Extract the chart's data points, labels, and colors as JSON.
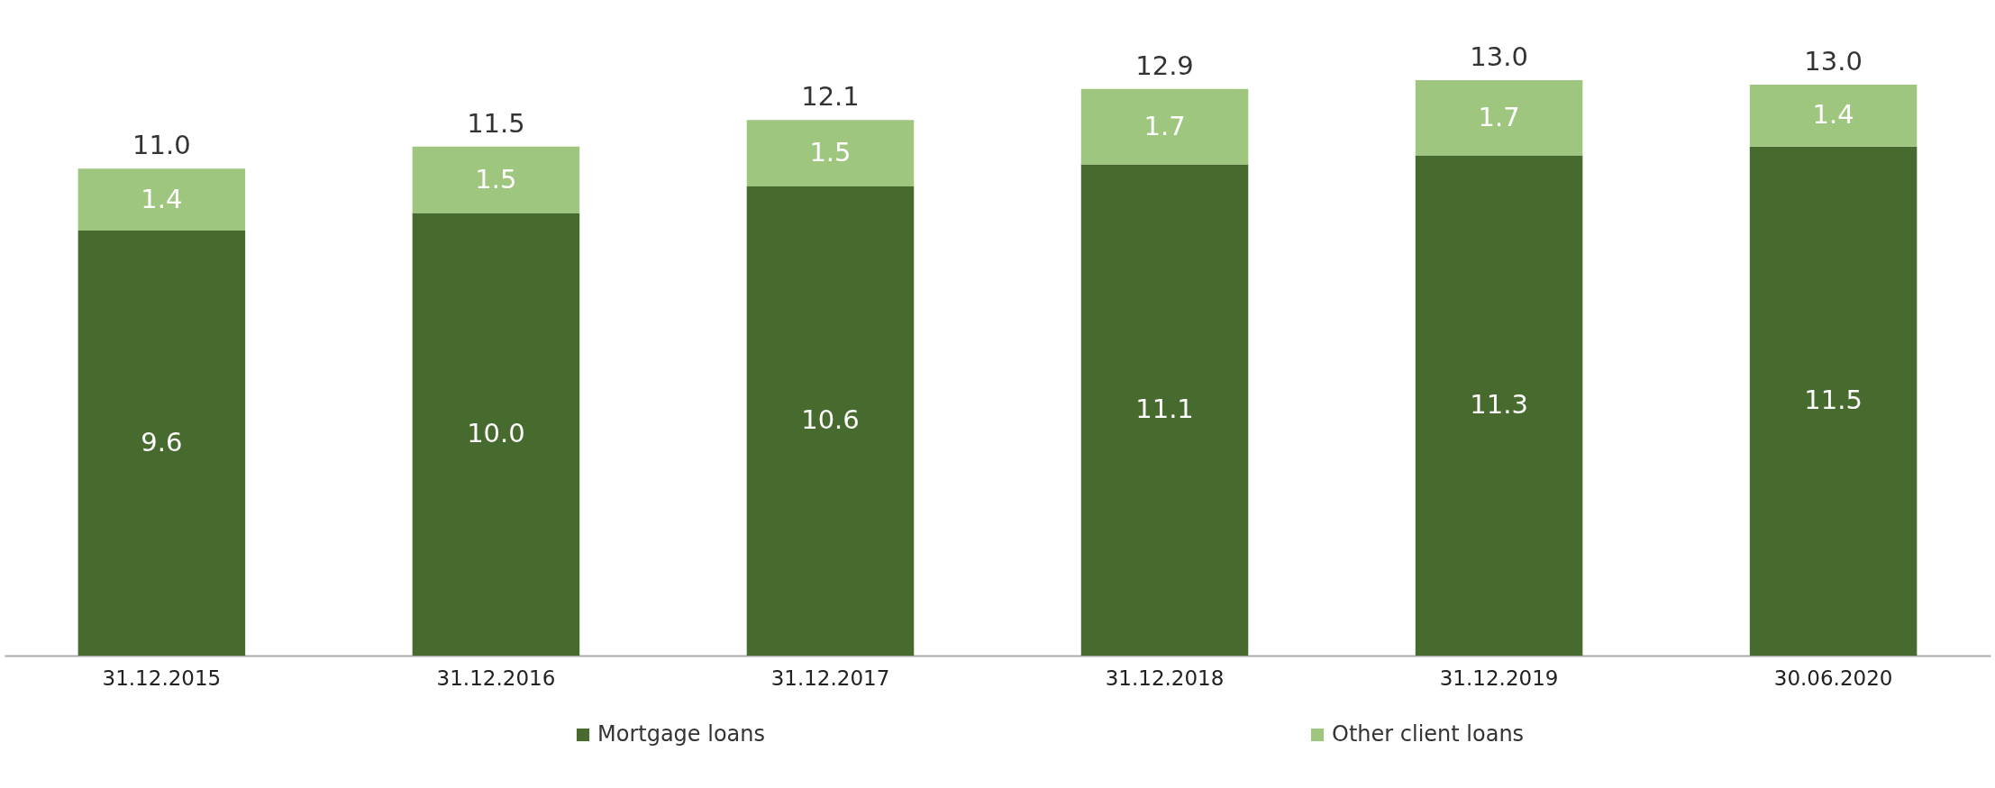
{
  "chart_data": {
    "type": "bar",
    "stacked": true,
    "categories": [
      "31.12.2015",
      "31.12.2016",
      "31.12.2017",
      "31.12.2018",
      "31.12.2019",
      "30.06.2020"
    ],
    "series": [
      {
        "name": "Mortgage loans",
        "color": "#476a2e",
        "values": [
          9.6,
          10.0,
          10.6,
          11.1,
          11.3,
          11.5
        ],
        "value_labels": [
          "9.6",
          "10.0",
          "10.6",
          "11.1",
          "11.3",
          "11.5"
        ]
      },
      {
        "name": "Other client loans",
        "color": "#9fc67f",
        "values": [
          1.4,
          1.5,
          1.5,
          1.7,
          1.7,
          1.4
        ],
        "value_labels": [
          "1.4",
          "1.5",
          "1.5",
          "1.7",
          "1.7",
          "1.4"
        ]
      }
    ],
    "totals": [
      "11.0",
      "11.5",
      "12.1",
      "12.9",
      "13.0",
      "13.0"
    ],
    "legend": "bottom",
    "grid": false
  }
}
